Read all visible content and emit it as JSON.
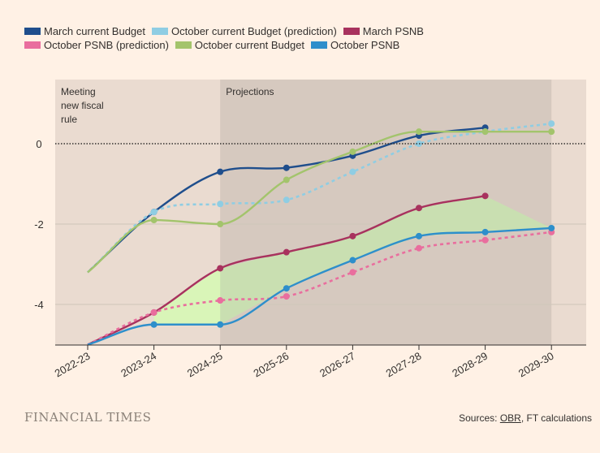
{
  "chart_data": {
    "type": "line",
    "categories": [
      "2022-23",
      "2023-24",
      "2024-25",
      "2025-26",
      "2026-27",
      "2027-28",
      "2028-29",
      "2029-30"
    ],
    "ylim": [
      -5,
      1.6
    ],
    "yticks": [
      0,
      -2,
      -4
    ],
    "ytick_labels": [
      "0",
      "-2",
      "-4"
    ],
    "series": [
      {
        "name": "March current Budget",
        "color": "#1F4E8C",
        "dashed": false,
        "values": [
          -3.2,
          -1.7,
          -0.7,
          -0.6,
          -0.3,
          0.2,
          0.4,
          null
        ]
      },
      {
        "name": "October current Budget (prediction)",
        "color": "#8FCDE3",
        "dashed": true,
        "values": [
          -3.2,
          -1.7,
          -1.5,
          -1.4,
          -0.7,
          0.0,
          0.3,
          0.5
        ]
      },
      {
        "name": "March PSNB",
        "color": "#A8325E",
        "dashed": false,
        "values": [
          -5.0,
          -4.2,
          -3.1,
          -2.7,
          -2.3,
          -1.6,
          -1.3,
          null
        ]
      },
      {
        "name": "October PSNB (prediction)",
        "color": "#E96E9E",
        "dashed": true,
        "values": [
          -5.0,
          -4.2,
          -3.9,
          -3.8,
          -3.2,
          -2.6,
          -2.4,
          -2.2
        ]
      },
      {
        "name": "October current Budget",
        "color": "#A3C46C",
        "dashed": false,
        "values": [
          -3.2,
          -1.9,
          -2.0,
          -0.9,
          -0.2,
          0.3,
          0.3,
          0.3
        ]
      },
      {
        "name": "October PSNB",
        "color": "#2E8FCB",
        "dashed": false,
        "values": [
          -5.0,
          -4.5,
          -4.5,
          -3.6,
          -2.9,
          -2.3,
          -2.2,
          -2.1
        ]
      }
    ],
    "annotations": [
      {
        "label": "Meeting new fiscal rule",
        "x_start": "2022-23",
        "x_end": "2024-25"
      },
      {
        "label": "Projections",
        "x_start": "2024-25",
        "x_end": "2029-30"
      }
    ],
    "colors": {
      "background": "#FFF1E5",
      "shade": "#EADBD0",
      "projection_shade": "#D6C9BF",
      "fill_light": "#D9F5B8",
      "fill": "#C8E0B0",
      "grid": "#CEC6B9",
      "zero_line": "#33302E"
    }
  },
  "footer": {
    "brand": "FINANCIAL TIMES",
    "source_prefix": "Sources: ",
    "source_link": "OBR",
    "source_suffix": ", FT calculations"
  }
}
